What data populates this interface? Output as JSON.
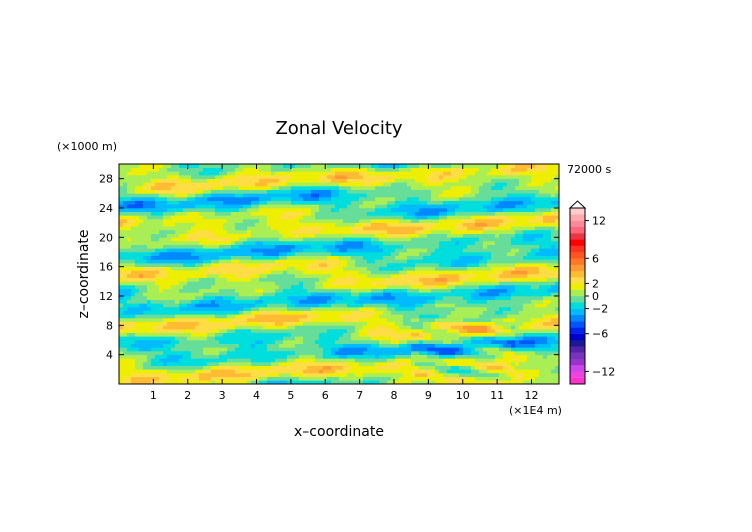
{
  "chart_data": {
    "type": "heatmap",
    "title": "Zonal Velocity",
    "xlabel": "x–coordinate",
    "ylabel": "z–coordinate",
    "x_unit": "(×1E4 m)",
    "y_unit": "(×1000 m)",
    "time_label": "72000 s",
    "xlim": [
      0,
      12.8
    ],
    "ylim": [
      0,
      30
    ],
    "x_ticks": [
      "1",
      "2",
      "3",
      "4",
      "5",
      "6",
      "7",
      "8",
      "9",
      "10",
      "11",
      "12"
    ],
    "y_ticks": [
      "4",
      "8",
      "12",
      "16",
      "20",
      "24",
      "28"
    ],
    "grid": false,
    "colorbar": {
      "placement": "right",
      "range": [
        -14,
        14
      ],
      "tick_labels": [
        "12",
        "6",
        "2",
        "0",
        "−2",
        "−6",
        "−12"
      ],
      "tick_values": [
        12,
        6,
        2,
        0,
        -2,
        -6,
        -12
      ],
      "levels": [
        -14,
        -13,
        -12,
        -11,
        -10,
        -9,
        -8,
        -7,
        -6,
        -5,
        -4,
        -3,
        -2,
        -1,
        0,
        1,
        2,
        3,
        4,
        5,
        6,
        7,
        8,
        9,
        10,
        11,
        12,
        13,
        14
      ],
      "colors": [
        "#ff33cc",
        "#ee44dd",
        "#cc44ee",
        "#9933cc",
        "#7733bb",
        "#5522aa",
        "#1a1a99",
        "#0000cc",
        "#0022ee",
        "#0055ff",
        "#0088ff",
        "#00bbff",
        "#00dddd",
        "#66dd99",
        "#aaee55",
        "#eeee00",
        "#ffdd44",
        "#ffbb33",
        "#ff9933",
        "#ff7722",
        "#ff5522",
        "#ff3322",
        "#ff0000",
        "#ee3344",
        "#ff6677",
        "#ff8899",
        "#ffaaaa",
        "#ffcccc"
      ]
    },
    "field_description": "x-z field of zonal velocity mostly between -2 and 2 (yellow/green), with banded positive (orange) and negative (cyan/blue) layers"
  }
}
